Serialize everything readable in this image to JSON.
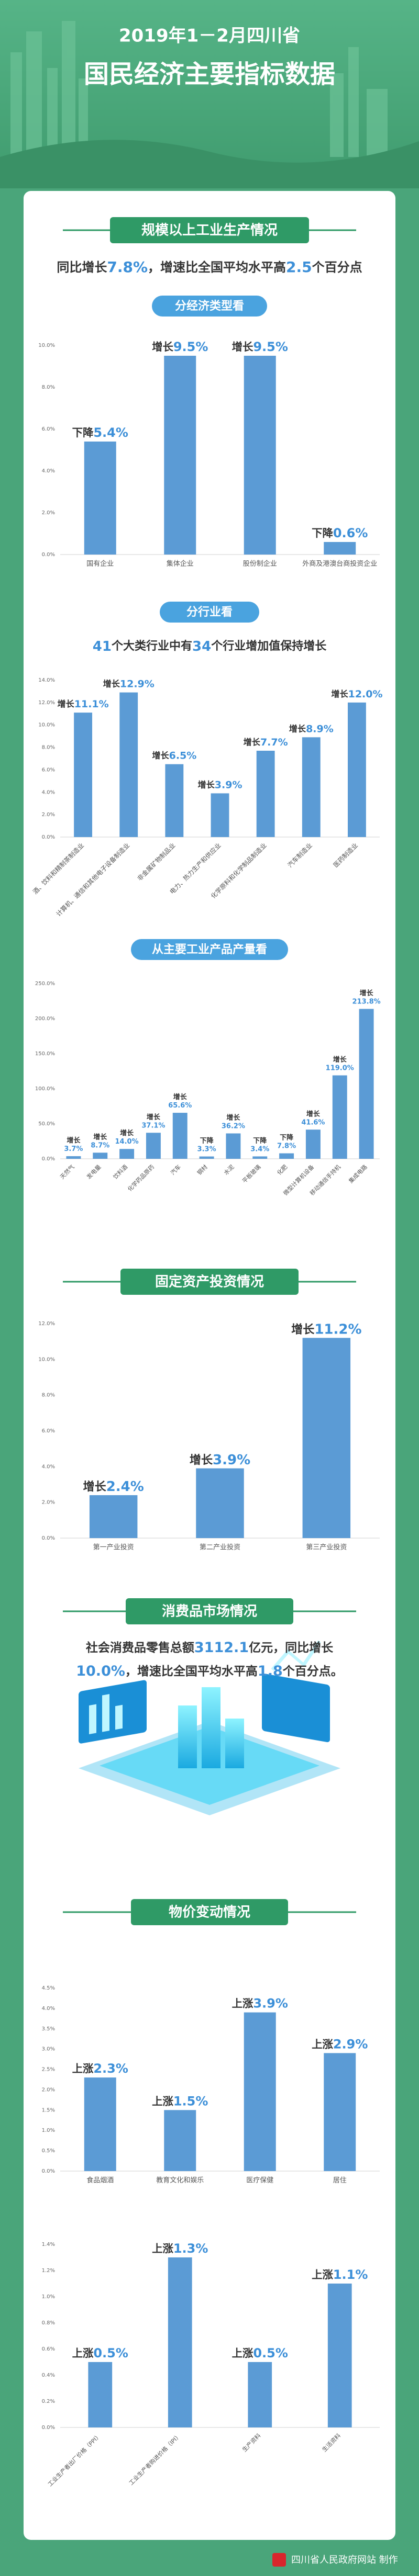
{
  "header": {
    "line1": "2019年1－2月四川省",
    "line2": "国民经济主要指标数据"
  },
  "banners": [
    "规模以上工业生产情况",
    "固定资产投资情况",
    "消费品市场情况",
    "物价变动情况"
  ],
  "subheadings": [
    "分经济类型看",
    "分行业看",
    "从主要工业产品产量看"
  ],
  "industry_summary": [
    "同比增长",
    "7.8%",
    "，增速比全国平均水平高",
    "2.5",
    "个百分点"
  ],
  "sector_summary": [
    "41",
    "个大类行业中有",
    "34",
    "个行业增加值保持增长"
  ],
  "retail_summary_line1": [
    "社会消费品零售总额",
    "3112.1",
    "亿元，同比增长"
  ],
  "retail_summary_line2": [
    "10.0%",
    "，增速比全国平均水平高",
    "1.8",
    "个百分点。"
  ],
  "footer": {
    "credit": "四川省人民政府网站 制作"
  },
  "chart_data": [
    {
      "type": "bar",
      "color": "#5b9bd5",
      "grid": false,
      "categories": [
        "国有企业",
        "集体企业",
        "股份制企业",
        "外商及港澳台商投资企业"
      ],
      "values": [
        5.4,
        9.5,
        9.5,
        0.6
      ],
      "value_label_prefixes": [
        "下降",
        "增长",
        "增长",
        "下降"
      ],
      "value_labels": [
        "5.4%",
        "9.5%",
        "9.5%",
        "0.6%"
      ],
      "ylim": [
        0,
        10
      ],
      "yticks": [
        {
          "value": 0,
          "label": "0.0%"
        },
        {
          "value": 2,
          "label": "2.0%"
        },
        {
          "value": 4,
          "label": "4.0%"
        },
        {
          "value": 6,
          "label": "6.0%"
        },
        {
          "value": 8,
          "label": "8.0%"
        },
        {
          "value": 10,
          "label": "10.0%"
        }
      ]
    },
    {
      "type": "bar",
      "color": "#5b9bd5",
      "grid": false,
      "categories": [
        "酒、饮料和精制茶制造业",
        "计算机、通信和其他电子设备制造业",
        "非金属矿物制品业",
        "电力、热力生产和供应业",
        "化学原料和化学制品制造业",
        "汽车制造业",
        "医药制造业"
      ],
      "values": [
        11.1,
        12.9,
        6.5,
        3.9,
        7.7,
        8.9,
        12.0
      ],
      "value_label_prefixes": [
        "增长",
        "增长",
        "增长",
        "增长",
        "增长",
        "增长",
        "增长"
      ],
      "value_labels": [
        "11.1%",
        "12.9%",
        "6.5%",
        "3.9%",
        "7.7%",
        "8.9%",
        "12.0%"
      ],
      "ylim": [
        0,
        14
      ],
      "yticks": [
        {
          "value": 0,
          "label": "0.0%"
        },
        {
          "value": 2,
          "label": "2.0%"
        },
        {
          "value": 4,
          "label": "4.0%"
        },
        {
          "value": 6,
          "label": "6.0%"
        },
        {
          "value": 8,
          "label": "8.0%"
        },
        {
          "value": 10,
          "label": "10.0%"
        },
        {
          "value": 12,
          "label": "12.0%"
        },
        {
          "value": 14,
          "label": "14.0%"
        }
      ]
    },
    {
      "type": "bar",
      "color": "#5b9bd5",
      "grid": false,
      "categories": [
        "天然气",
        "发电量",
        "饮料酒",
        "化学药品原药",
        "汽车",
        "钢材",
        "水泥",
        "平板玻璃",
        "化肥",
        "微型计算机设备",
        "移动通信手持机",
        "集成电路"
      ],
      "values": [
        3.7,
        8.7,
        14.0,
        37.1,
        65.6,
        3.3,
        36.2,
        3.4,
        7.8,
        41.6,
        119.0,
        213.8
      ],
      "value_label_prefixes": [
        "增长",
        "增长",
        "增长",
        "增长",
        "增长",
        "下降",
        "增长",
        "下降",
        "下降",
        "增长",
        "增长",
        "增长"
      ],
      "value_labels": [
        "3.7%",
        "8.7%",
        "14.0%",
        "37.1%",
        "65.6%",
        "3.3%",
        "36.2%",
        "3.4%",
        "7.8%",
        "41.6%",
        "119.0%",
        "213.8%"
      ],
      "ylim": [
        0,
        250
      ],
      "yticks": [
        {
          "value": 0,
          "label": "0.0%"
        },
        {
          "value": 50,
          "label": "50.0%"
        },
        {
          "value": 100,
          "label": "100.0%"
        },
        {
          "value": 150,
          "label": "150.0%"
        },
        {
          "value": 200,
          "label": "200.0%"
        },
        {
          "value": 250,
          "label": "250.0%"
        }
      ]
    },
    {
      "type": "bar",
      "color": "#5b9bd5",
      "grid": false,
      "categories": [
        "第一产业投资",
        "第二产业投资",
        "第三产业投资"
      ],
      "values": [
        2.4,
        3.9,
        11.2
      ],
      "value_label_prefixes": [
        "增长",
        "增长",
        "增长"
      ],
      "value_labels": [
        "2.4%",
        "3.9%",
        "11.2%"
      ],
      "ylim": [
        0,
        12
      ],
      "yticks": [
        {
          "value": 0,
          "label": "0.0%"
        },
        {
          "value": 2,
          "label": "2.0%"
        },
        {
          "value": 4,
          "label": "4.0%"
        },
        {
          "value": 6,
          "label": "6.0%"
        },
        {
          "value": 8,
          "label": "8.0%"
        },
        {
          "value": 10,
          "label": "10.0%"
        },
        {
          "value": 12,
          "label": "12.0%"
        }
      ]
    },
    {
      "type": "bar",
      "color": "#5b9bd5",
      "grid": false,
      "categories": [
        "食品烟酒",
        "教育文化和娱乐",
        "医疗保健",
        "居住"
      ],
      "values": [
        2.3,
        1.5,
        3.9,
        2.9
      ],
      "value_label_prefixes": [
        "上涨",
        "上涨",
        "上涨",
        "上涨"
      ],
      "value_labels": [
        "2.3%",
        "1.5%",
        "3.9%",
        "2.9%"
      ],
      "ylim": [
        0,
        4.5
      ],
      "yticks": [
        {
          "value": 0,
          "label": "0.0%"
        },
        {
          "value": 0.5,
          "label": "0.5%"
        },
        {
          "value": 1,
          "label": "1.0%"
        },
        {
          "value": 1.5,
          "label": "1.5%"
        },
        {
          "value": 2,
          "label": "2.0%"
        },
        {
          "value": 2.5,
          "label": "2.5%"
        },
        {
          "value": 3,
          "label": "3.0%"
        },
        {
          "value": 3.5,
          "label": "3.5%"
        },
        {
          "value": 4,
          "label": "4.0%"
        },
        {
          "value": 4.5,
          "label": "4.5%"
        }
      ]
    },
    {
      "type": "bar",
      "color": "#5b9bd5",
      "grid": false,
      "categories": [
        "工业生产者出厂价格（PPI）",
        "工业生产者购进价格（IPI）",
        "生产资料",
        "生活资料"
      ],
      "values": [
        0.5,
        1.3,
        0.5,
        1.1
      ],
      "value_label_prefixes": [
        "上涨",
        "上涨",
        "上涨",
        "上涨"
      ],
      "value_labels": [
        "0.5%",
        "1.3%",
        "0.5%",
        "1.1%"
      ],
      "ylim": [
        0,
        1.4
      ],
      "yticks": [
        {
          "value": 0,
          "label": "0.0%"
        },
        {
          "value": 0.2,
          "label": "0.2%"
        },
        {
          "value": 0.4,
          "label": "0.4%"
        },
        {
          "value": 0.6,
          "label": "0.6%"
        },
        {
          "value": 0.8,
          "label": "0.8%"
        },
        {
          "value": 1,
          "label": "1.0%"
        },
        {
          "value": 1.2,
          "label": "1.2%"
        },
        {
          "value": 1.4,
          "label": "1.4%"
        }
      ]
    }
  ]
}
